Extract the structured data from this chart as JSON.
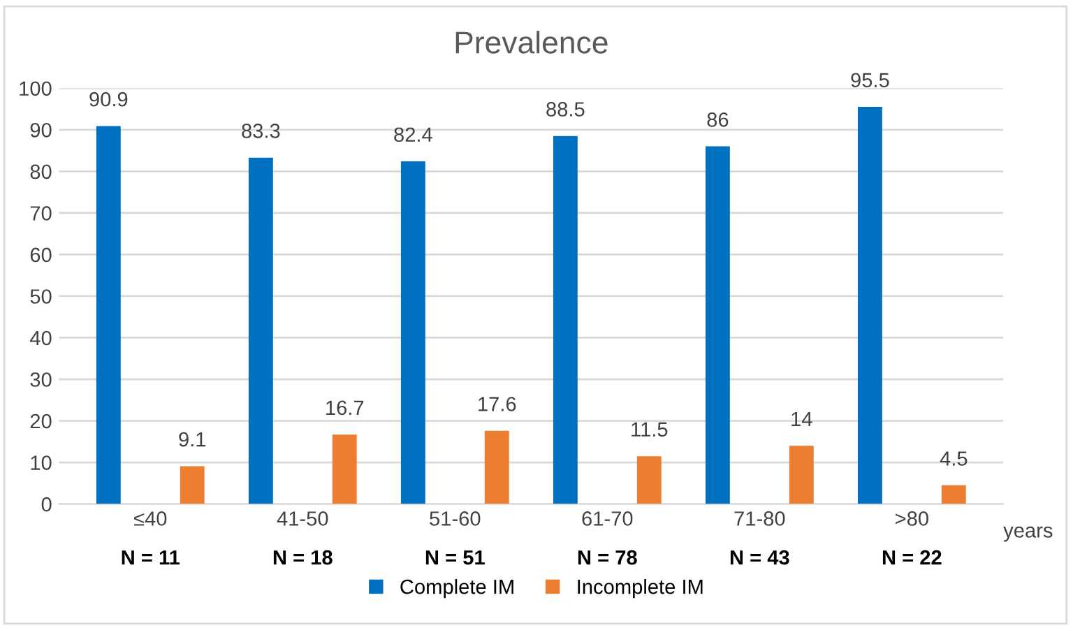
{
  "chart_data": {
    "type": "bar",
    "title": "Prevalence",
    "xlabel": "years",
    "categories": [
      "≤40",
      "41-50",
      "51-60",
      "61-70",
      "71-80",
      ">80"
    ],
    "series": [
      {
        "name": "Complete IM",
        "color": "#0070c0",
        "values": [
          90.9,
          83.3,
          82.4,
          88.5,
          86,
          95.5
        ]
      },
      {
        "name": "Incomplete IM",
        "color": "#ed7d31",
        "values": [
          9.1,
          16.7,
          17.6,
          11.5,
          14,
          4.5
        ]
      }
    ],
    "annotations": [
      "N = 11",
      "N = 18",
      "N = 51",
      "N = 78",
      "N = 43",
      "N = 22"
    ],
    "ylim": [
      0,
      100
    ],
    "yticks": [
      0,
      10,
      20,
      30,
      40,
      50,
      60,
      70,
      80,
      90,
      100
    ],
    "grid": "y",
    "legend": "bottom",
    "data_labels": true
  }
}
